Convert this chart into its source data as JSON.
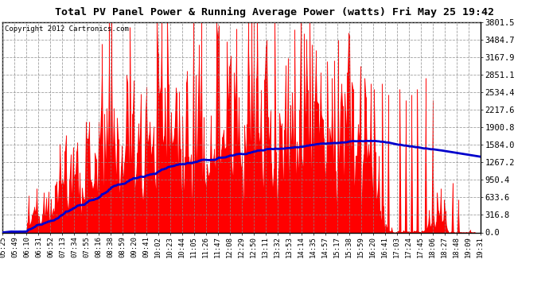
{
  "title": "Total PV Panel Power & Running Average Power (watts) Fri May 25 19:42",
  "copyright": "Copyright 2012 Cartronics.com",
  "background_color": "#ffffff",
  "fill_color": "#ff0000",
  "line_color": "#0000cc",
  "ylim": [
    0.0,
    3801.5
  ],
  "yticks": [
    0.0,
    316.8,
    633.6,
    950.4,
    1267.2,
    1584.0,
    1900.8,
    2217.6,
    2534.4,
    2851.1,
    3167.9,
    3484.7,
    3801.5
  ],
  "xtick_labels": [
    "05:25",
    "05:49",
    "06:10",
    "06:31",
    "06:52",
    "07:13",
    "07:34",
    "07:55",
    "08:16",
    "08:38",
    "08:59",
    "09:20",
    "09:41",
    "10:02",
    "10:23",
    "10:44",
    "11:05",
    "11:26",
    "11:47",
    "12:08",
    "12:29",
    "12:50",
    "13:11",
    "13:32",
    "13:53",
    "14:14",
    "14:35",
    "14:57",
    "15:17",
    "15:38",
    "15:59",
    "16:20",
    "16:41",
    "17:03",
    "17:24",
    "17:45",
    "18:06",
    "18:27",
    "18:48",
    "19:09",
    "19:31"
  ],
  "num_ticks": 41,
  "num_points": 410,
  "grid_color": "#888888",
  "title_fontsize": 9.5,
  "copyright_fontsize": 6.5,
  "tick_fontsize": 6.5,
  "ytick_fontsize": 7.5
}
